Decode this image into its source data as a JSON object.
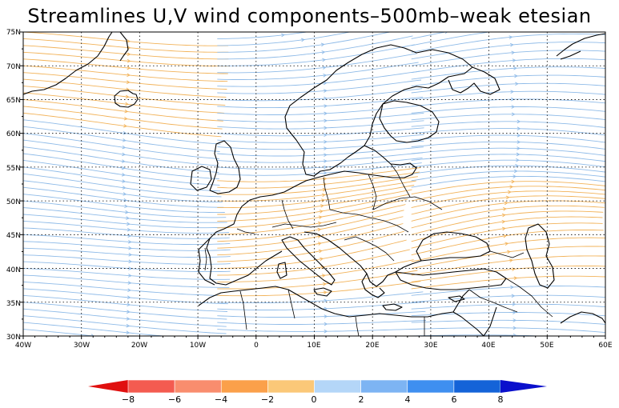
{
  "title": "Streamlines U,V wind components–500mb–weak etesian",
  "lat_labels": [
    "75N",
    "70N",
    "65N",
    "60N",
    "55N",
    "50N",
    "45N",
    "40N",
    "35N",
    "30N"
  ],
  "lon_labels": [
    "40W",
    "30W",
    "20W",
    "10W",
    "0",
    "10E",
    "20E",
    "30E",
    "40E",
    "50E",
    "60E"
  ],
  "colorbar": {
    "labels": [
      "−8",
      "−6",
      "−4",
      "−2",
      "0",
      "2",
      "4",
      "6",
      "8"
    ],
    "colors": [
      "#e8231e",
      "#f45b50",
      "#f98d6e",
      "#fba04a",
      "#fbc878",
      "#b4d6f8",
      "#7db4f3",
      "#3f8ff0",
      "#1463d8",
      "#0c3cbf"
    ],
    "under_color": "#e0100f",
    "over_color": "#0a10cc"
  },
  "map": {
    "lon_range": [
      -40,
      60
    ],
    "lat_range": [
      30,
      75
    ],
    "grid": true,
    "stream_colors": {
      "negative": "#f2b35a",
      "positive": "#8fbbe8",
      "calm": "#8a8a8a"
    },
    "coastline_color": "#000000"
  }
}
